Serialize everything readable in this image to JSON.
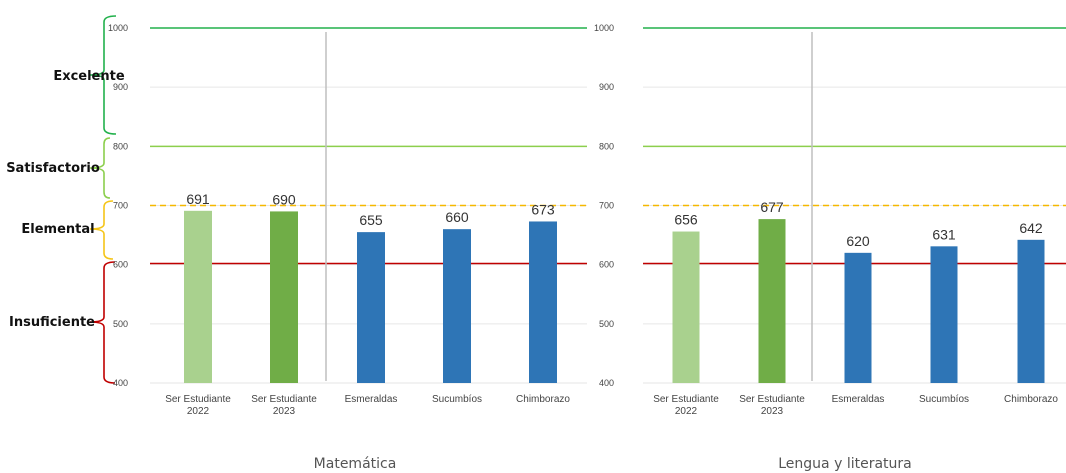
{
  "levels": [
    {
      "label": "Excelente",
      "from": 800,
      "to": 1000,
      "color": "#22b14c"
    },
    {
      "label": "Satisfactorio",
      "from": 700,
      "to": 800,
      "color": "#8ccf4d"
    },
    {
      "label": "Elemental",
      "from": 600,
      "to": 700,
      "color": "#f5c518"
    },
    {
      "label": "Insuficiente",
      "from": 400,
      "to": 600,
      "color": "#c00000"
    }
  ],
  "reference_lines": [
    {
      "value": 1000,
      "color": "#22b14c",
      "style": "solid"
    },
    {
      "value": 800,
      "color": "#8ccf4d",
      "style": "solid"
    },
    {
      "value": 700,
      "color": "#f5b800",
      "style": "dashed"
    },
    {
      "value": 602,
      "color": "#c00000",
      "style": "solid"
    }
  ],
  "colors": {
    "ser_2022": "#a9d18e",
    "ser_2023": "#70ad47",
    "province": "#2e75b6",
    "divider": "#bfbfbf"
  },
  "chart_data": [
    {
      "type": "bar",
      "title": "Matemática",
      "categories": [
        "Ser Estudiante 2022",
        "Ser Estudiante 2023",
        "Esmeraldas",
        "Sucumbíos",
        "Chimborazo"
      ],
      "category_lines": [
        [
          "Ser Estudiante",
          "2022"
        ],
        [
          "Ser Estudiante",
          "2023"
        ],
        [
          "Esmeraldas"
        ],
        [
          "Sucumbíos"
        ],
        [
          "Chimborazo"
        ]
      ],
      "values": [
        691,
        690,
        655,
        660,
        673
      ],
      "value_labels": [
        "691",
        "690",
        "655",
        "660",
        "673"
      ],
      "bar_colors": [
        "ser_2022",
        "ser_2023",
        "province",
        "province",
        "province"
      ],
      "yticks": [
        "400",
        "500",
        "600",
        "700",
        "800",
        "900",
        "1000"
      ],
      "ylim": [
        400,
        1000
      ],
      "grid": true
    },
    {
      "type": "bar",
      "title": "Lengua y literatura",
      "categories": [
        "Ser Estudiante 2022",
        "Ser Estudiante 2023",
        "Esmeraldas",
        "Sucumbíos",
        "Chimborazo"
      ],
      "category_lines": [
        [
          "Ser Estudiante",
          "2022"
        ],
        [
          "Ser Estudiante",
          "2023"
        ],
        [
          "Esmeraldas"
        ],
        [
          "Sucumbíos"
        ],
        [
          "Chimborazo"
        ]
      ],
      "values": [
        656,
        677,
        620,
        631,
        642
      ],
      "value_labels": [
        "656",
        "677",
        "620",
        "631",
        "642"
      ],
      "bar_colors": [
        "ser_2022",
        "ser_2023",
        "province",
        "province",
        "province"
      ],
      "yticks": [
        "400",
        "500",
        "600",
        "700",
        "800",
        "900",
        "1000"
      ],
      "ylim": [
        400,
        1000
      ],
      "grid": true
    }
  ]
}
